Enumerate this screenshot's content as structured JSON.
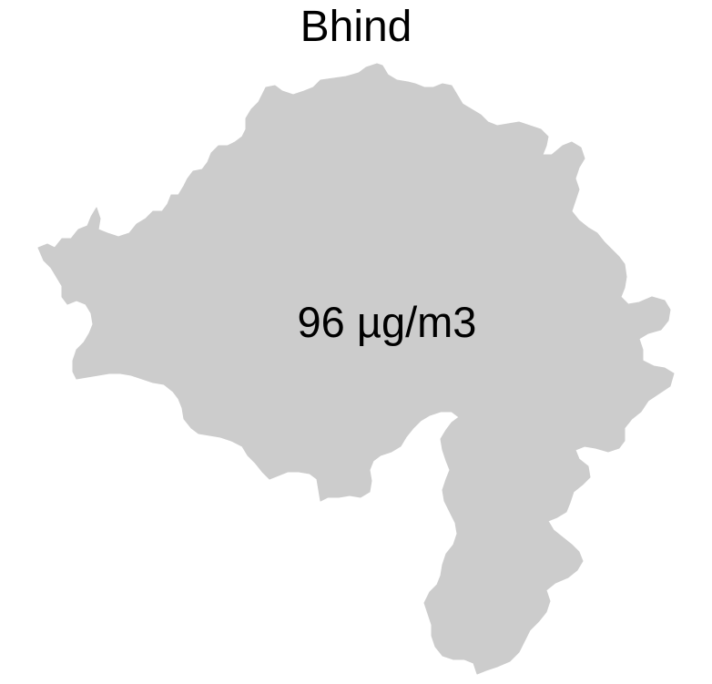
{
  "map": {
    "title": "Bhind",
    "region_value_label": "96 µg/m3",
    "region_fill_color": "#cccccc",
    "background_color": "#ffffff",
    "text_color": "#000000"
  }
}
